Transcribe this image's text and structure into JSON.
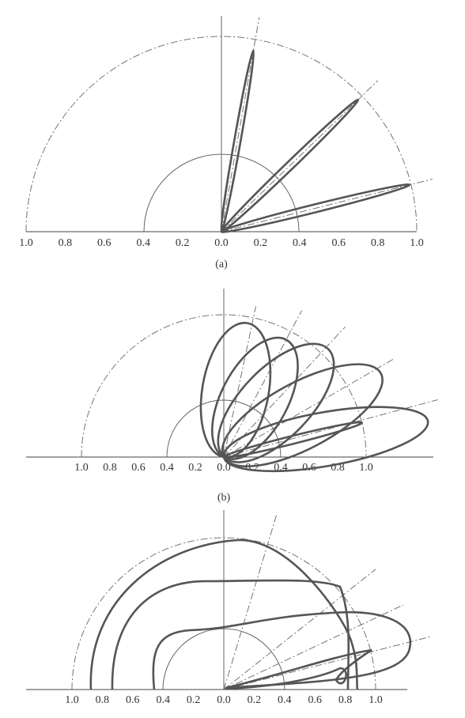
{
  "panels": [
    {
      "ticks": [
        "1.0",
        "0.8",
        "0.6",
        "0.4",
        "0.2",
        "0.0",
        "0.2",
        "0.4",
        "0.6",
        "0.8",
        "1.0"
      ],
      "caption": "(a)"
    },
    {
      "ticks": [
        "1.0",
        "0.8",
        "0.6",
        "0.4",
        "0.2",
        "0.0",
        "0.2",
        "0.4",
        "0.6",
        "0.8",
        "1.0"
      ],
      "caption": "(b)"
    },
    {
      "ticks": [
        "1.0",
        "0.8",
        "0.6",
        "0.4",
        "0.2",
        "0.0",
        "0.2",
        "0.4",
        "0.6",
        "0.8",
        "1.0"
      ]
    }
  ]
}
